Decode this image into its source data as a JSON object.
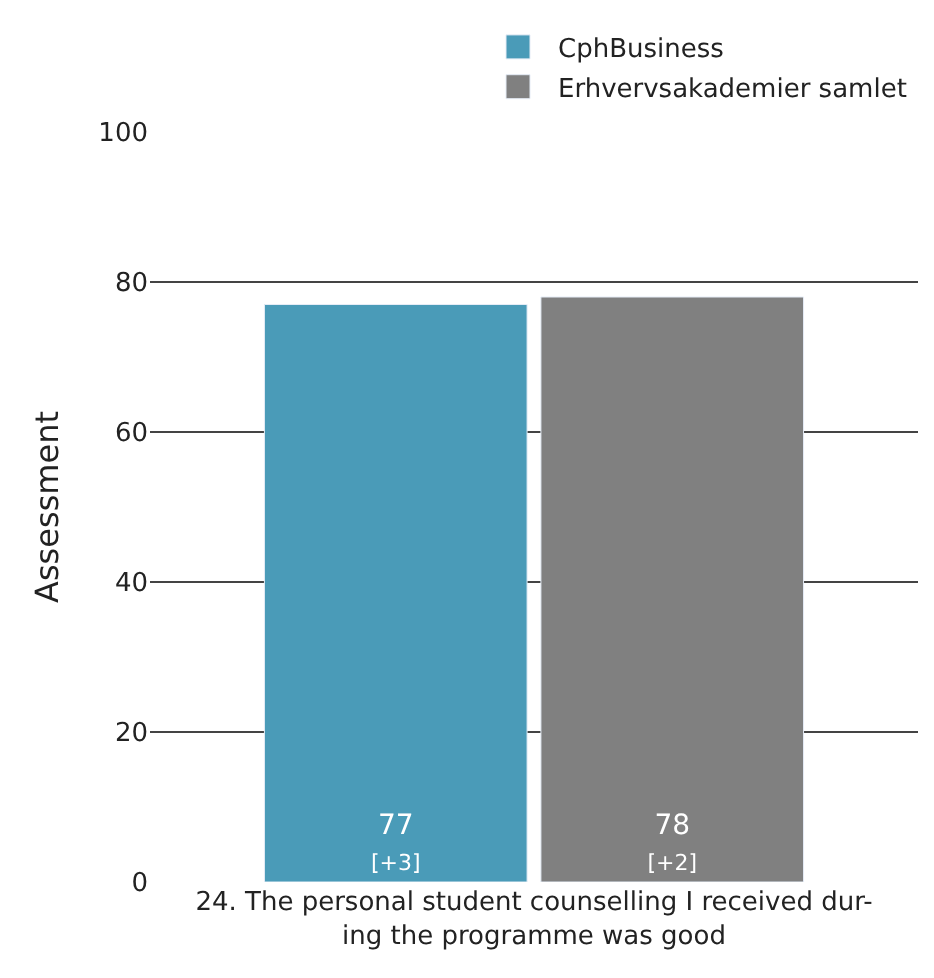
{
  "chart_data": {
    "type": "bar",
    "ylabel": "Assessment",
    "categories": [
      "24. The personal student counselling I received dur-\ning the programme was good"
    ],
    "series": [
      {
        "name": "CphBusiness",
        "color": "#4a9bb8",
        "values": [
          77
        ],
        "value_labels": [
          "77\n[+3]"
        ]
      },
      {
        "name": "Erhvervsakademier samlet",
        "color": "#808080",
        "values": [
          78
        ],
        "value_labels": [
          "78\n[+2]"
        ]
      }
    ],
    "ylim": [
      0,
      100
    ],
    "yticks": [
      0,
      20,
      40,
      60,
      80,
      100
    ],
    "grid": "y",
    "legend": "top right"
  }
}
